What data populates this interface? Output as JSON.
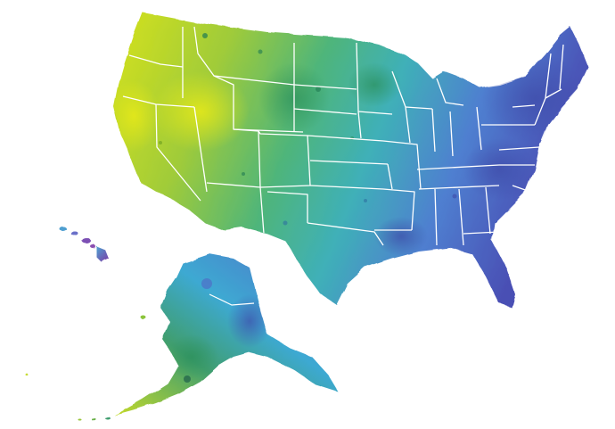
{
  "map": {
    "style": "watercolor",
    "background_color": "#ffffff",
    "border_color": "#ffffff",
    "palette": {
      "yellow": "#d6e21c",
      "lime": "#a9cf32",
      "green": "#62b844",
      "teal": "#3fb0a0",
      "cyan": "#3ea9d2",
      "blue": "#4f79cf",
      "indigo": "#4a4fb4",
      "purple": "#7b3fa8",
      "dark_green": "#1f7a52"
    },
    "regions": [
      {
        "name": "contiguous-us",
        "color_from": "#c9dc25",
        "color_to": "#4a4fb4"
      },
      {
        "name": "alaska",
        "color_from": "#3ea9d2",
        "color_to": "#1f7a52"
      },
      {
        "name": "hawaii",
        "color_from": "#7b3fa8",
        "color_to": "#4a4fb4"
      }
    ]
  }
}
